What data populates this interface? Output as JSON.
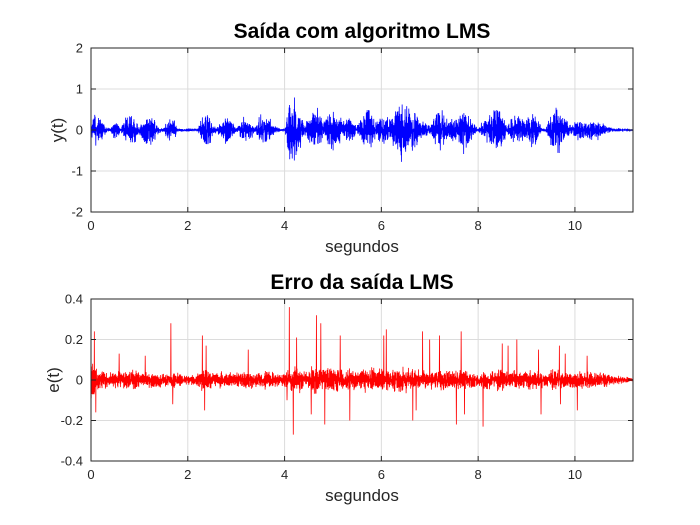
{
  "chart_data": [
    {
      "type": "line",
      "title": "Saída com algoritmo LMS",
      "xlabel": "segundos",
      "ylabel": "y(t)",
      "xlim": [
        0,
        11.2
      ],
      "ylim": [
        -2,
        2
      ],
      "xticks": [
        0,
        2,
        4,
        6,
        8,
        10
      ],
      "yticks": [
        -2,
        -1,
        0,
        1,
        2
      ],
      "grid": true,
      "color": "#0000ff",
      "series": [
        {
          "envelope_x": [
            0.0,
            0.1,
            0.2,
            0.3,
            0.4,
            0.5,
            0.55,
            0.6,
            0.7,
            0.8,
            0.9,
            1.0,
            1.1,
            1.2,
            1.3,
            1.4,
            1.5,
            1.6,
            1.7,
            1.8,
            1.9,
            2.0,
            2.1,
            2.2,
            2.3,
            2.4,
            2.5,
            2.6,
            2.7,
            2.8,
            2.9,
            3.0,
            3.1,
            3.2,
            3.3,
            3.4,
            3.5,
            3.6,
            3.7,
            3.8,
            3.9,
            4.0,
            4.1,
            4.2,
            4.3,
            4.4,
            4.5,
            4.6,
            4.7,
            4.8,
            4.9,
            5.0,
            5.1,
            5.2,
            5.3,
            5.4,
            5.5,
            5.6,
            5.7,
            5.8,
            5.9,
            6.0,
            6.1,
            6.2,
            6.3,
            6.4,
            6.5,
            6.6,
            6.7,
            6.8,
            6.9,
            7.0,
            7.1,
            7.2,
            7.3,
            7.4,
            7.5,
            7.6,
            7.7,
            7.8,
            7.9,
            8.0,
            8.1,
            8.2,
            8.3,
            8.4,
            8.5,
            8.6,
            8.7,
            8.8,
            8.9,
            9.0,
            9.1,
            9.2,
            9.3,
            9.4,
            9.5,
            9.6,
            9.7,
            9.8,
            9.9,
            10.0,
            10.1,
            10.2,
            10.3,
            10.4,
            10.5,
            10.6,
            10.7,
            10.8,
            10.9,
            11.0,
            11.1,
            11.2
          ],
          "envelope_amplitude": [
            0.15,
            0.5,
            0.4,
            0.1,
            0.05,
            0.3,
            0.35,
            0.05,
            0.35,
            0.45,
            0.45,
            0.1,
            0.4,
            0.4,
            0.4,
            0.1,
            0.05,
            0.35,
            0.3,
            0.05,
            0.04,
            0.05,
            0.04,
            0.05,
            0.4,
            0.6,
            0.2,
            0.05,
            0.35,
            0.45,
            0.3,
            0.05,
            0.3,
            0.35,
            0.25,
            0.1,
            0.4,
            0.4,
            0.3,
            0.1,
            0.05,
            0.05,
            0.8,
            1.0,
            0.6,
            0.15,
            0.35,
            0.6,
            0.55,
            0.2,
            0.45,
            0.55,
            0.5,
            0.2,
            0.35,
            0.3,
            0.1,
            0.45,
            0.6,
            0.45,
            0.2,
            0.45,
            0.5,
            0.3,
            0.6,
            0.85,
            0.8,
            0.6,
            0.5,
            0.3,
            0.2,
            0.15,
            0.4,
            0.6,
            0.45,
            0.25,
            0.35,
            0.5,
            0.6,
            0.45,
            0.2,
            0.05,
            0.25,
            0.35,
            0.55,
            0.65,
            0.5,
            0.15,
            0.35,
            0.45,
            0.3,
            0.3,
            0.55,
            0.45,
            0.1,
            0.05,
            0.45,
            0.7,
            0.65,
            0.3,
            0.15,
            0.25,
            0.3,
            0.2,
            0.35,
            0.25,
            0.25,
            0.15,
            0.1,
            0.05,
            0.05,
            0.02,
            0.02,
            0.01
          ]
        }
      ]
    },
    {
      "type": "line",
      "title": "Erro da saída LMS",
      "xlabel": "segundos",
      "ylabel": "e(t)",
      "xlim": [
        0,
        11.2
      ],
      "ylim": [
        -0.4,
        0.4
      ],
      "xticks": [
        0,
        2,
        4,
        6,
        8,
        10
      ],
      "yticks": [
        -0.4,
        -0.2,
        0,
        0.2,
        0.4
      ],
      "grid": true,
      "color": "#ff0000",
      "series": [
        {
          "envelope_x": [
            0.0,
            0.1,
            0.2,
            0.3,
            0.4,
            0.5,
            0.55,
            0.6,
            0.7,
            0.8,
            0.9,
            1.0,
            1.1,
            1.2,
            1.3,
            1.4,
            1.5,
            1.6,
            1.7,
            1.8,
            1.9,
            2.0,
            2.1,
            2.2,
            2.3,
            2.4,
            2.5,
            2.6,
            2.7,
            2.8,
            2.9,
            3.0,
            3.1,
            3.2,
            3.3,
            3.4,
            3.5,
            3.6,
            3.7,
            3.8,
            3.9,
            4.0,
            4.1,
            4.2,
            4.3,
            4.4,
            4.5,
            4.6,
            4.7,
            4.8,
            4.9,
            5.0,
            5.1,
            5.2,
            5.3,
            5.4,
            5.5,
            5.6,
            5.7,
            5.8,
            5.9,
            6.0,
            6.1,
            6.2,
            6.3,
            6.4,
            6.5,
            6.6,
            6.7,
            6.8,
            6.9,
            7.0,
            7.1,
            7.2,
            7.3,
            7.4,
            7.5,
            7.6,
            7.7,
            7.8,
            7.9,
            8.0,
            8.1,
            8.2,
            8.3,
            8.4,
            8.5,
            8.6,
            8.7,
            8.8,
            8.9,
            9.0,
            9.1,
            9.2,
            9.3,
            9.4,
            9.5,
            9.6,
            9.7,
            9.8,
            9.9,
            10.0,
            10.1,
            10.2,
            10.3,
            10.4,
            10.5,
            10.6,
            10.7,
            10.8,
            10.9,
            11.0,
            11.1,
            11.2
          ],
          "envelope_amplitude": [
            0.12,
            0.07,
            0.06,
            0.045,
            0.04,
            0.05,
            0.05,
            0.045,
            0.05,
            0.05,
            0.06,
            0.045,
            0.05,
            0.05,
            0.04,
            0.04,
            0.035,
            0.045,
            0.05,
            0.04,
            0.03,
            0.03,
            0.03,
            0.035,
            0.06,
            0.06,
            0.05,
            0.04,
            0.045,
            0.05,
            0.045,
            0.04,
            0.045,
            0.05,
            0.045,
            0.04,
            0.05,
            0.055,
            0.05,
            0.04,
            0.035,
            0.04,
            0.06,
            0.08,
            0.07,
            0.05,
            0.06,
            0.08,
            0.075,
            0.06,
            0.07,
            0.075,
            0.07,
            0.06,
            0.06,
            0.06,
            0.05,
            0.065,
            0.075,
            0.07,
            0.06,
            0.065,
            0.07,
            0.06,
            0.075,
            0.08,
            0.08,
            0.07,
            0.065,
            0.055,
            0.05,
            0.045,
            0.055,
            0.06,
            0.06,
            0.05,
            0.05,
            0.055,
            0.06,
            0.055,
            0.045,
            0.04,
            0.05,
            0.055,
            0.06,
            0.06,
            0.055,
            0.045,
            0.05,
            0.055,
            0.05,
            0.05,
            0.06,
            0.055,
            0.045,
            0.04,
            0.055,
            0.065,
            0.06,
            0.05,
            0.045,
            0.045,
            0.05,
            0.045,
            0.05,
            0.045,
            0.045,
            0.04,
            0.035,
            0.03,
            0.025,
            0.02,
            0.02,
            0.01
          ],
          "spikes_x": [
            0.07,
            0.1,
            0.58,
            1.12,
            1.65,
            1.69,
            2.3,
            2.35,
            2.38,
            3.25,
            4.05,
            4.1,
            4.18,
            4.25,
            4.55,
            4.66,
            4.75,
            4.83,
            5.15,
            5.35,
            6.05,
            6.1,
            6.65,
            6.72,
            6.85,
            7.0,
            7.2,
            7.55,
            7.65,
            7.72,
            8.1,
            8.5,
            8.62,
            8.8,
            9.25,
            9.3,
            9.68,
            9.7,
            9.8,
            10.05,
            10.25
          ],
          "spikes_y": [
            0.24,
            -0.16,
            0.13,
            0.12,
            0.28,
            -0.12,
            0.22,
            -0.15,
            0.17,
            0.15,
            -0.1,
            0.36,
            -0.27,
            0.21,
            -0.17,
            0.32,
            0.28,
            -0.22,
            0.22,
            -0.2,
            0.22,
            0.25,
            -0.2,
            -0.15,
            0.24,
            0.2,
            0.22,
            -0.22,
            0.24,
            -0.17,
            -0.23,
            0.18,
            0.17,
            0.2,
            0.15,
            -0.17,
            0.17,
            -0.12,
            0.13,
            -0.15,
            0.12
          ]
        }
      ]
    }
  ]
}
